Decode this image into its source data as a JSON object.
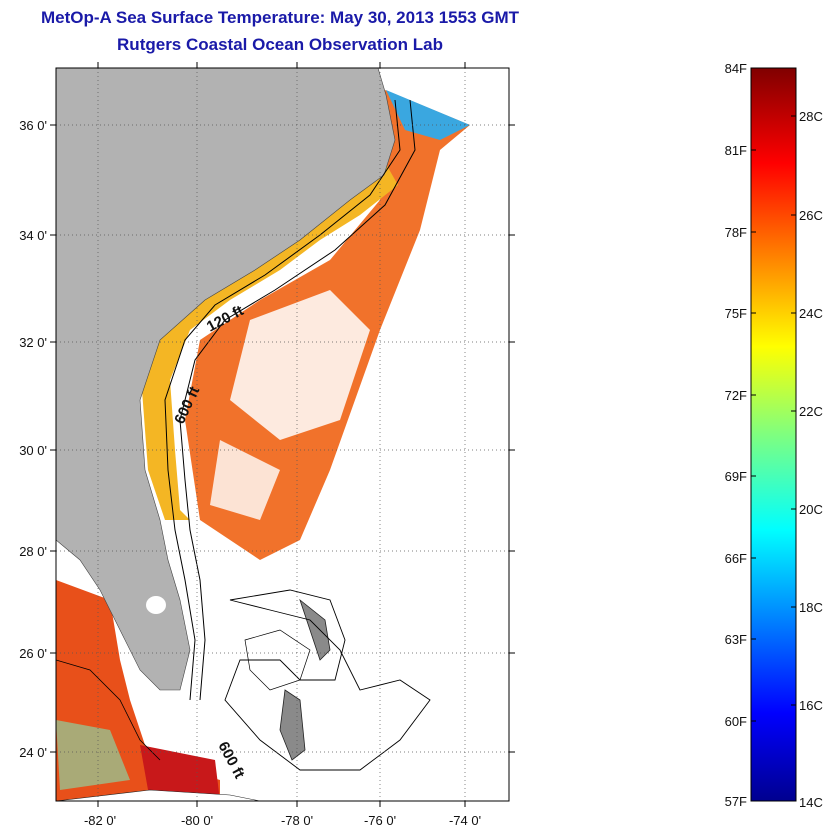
{
  "title": "MetOp-A Sea Surface Temperature:  May 30, 2013 1553 GMT",
  "subtitle": "Rutgers Coastal Ocean Observation Lab",
  "map": {
    "lat_ticks": [
      "36 0'",
      "34 0'",
      "32 0'",
      "30 0'",
      "28 0'",
      "26 0'",
      "24 0'"
    ],
    "lon_ticks": [
      "-82 0'",
      "-80 0'",
      "-78 0'",
      "-76 0'",
      "-74 0'"
    ],
    "contour_labels": [
      "120 ft",
      "600 ft",
      "600 ft"
    ],
    "colors": {
      "land": "#b2b2b2",
      "frame": "#000000",
      "grid": "#555555"
    }
  },
  "colorbar": {
    "fahrenheit": [
      "84F",
      "81F",
      "78F",
      "75F",
      "72F",
      "69F",
      "66F",
      "63F",
      "60F",
      "57F"
    ],
    "celsius": [
      "28C",
      "26C",
      "24C",
      "22C",
      "20C",
      "18C",
      "16C",
      "14C"
    ],
    "range_f": [
      57,
      84
    ],
    "colormap": "jet"
  }
}
